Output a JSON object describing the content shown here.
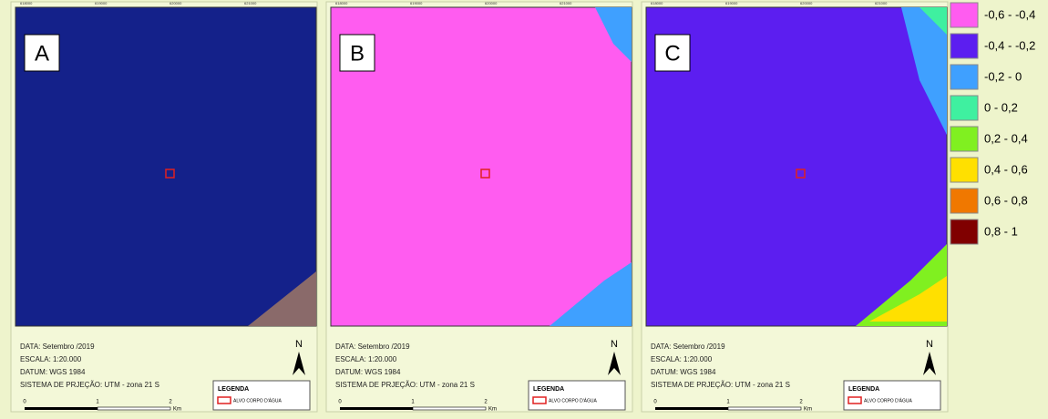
{
  "panels": [
    {
      "label": "A"
    },
    {
      "label": "B"
    },
    {
      "label": "C"
    }
  ],
  "map_info": {
    "date": "DATA: Setembro /2019",
    "scale": "ESCALA: 1:20.000",
    "datum": "DATUM: WGS 1984",
    "projection": "SISTEMA DE PRJEÇÃO: UTM - zona 21 S",
    "north": "N",
    "scale_bar": {
      "labels": [
        "0",
        "1",
        "2"
      ],
      "unit": "Km"
    },
    "coordinates": [
      "618000",
      "619000",
      "620000",
      "621000"
    ]
  },
  "inset_legend": {
    "title": "LEGENDA",
    "item": "ALVO CORPO D'ÁGUA"
  },
  "legend": {
    "classes": [
      {
        "label": "-0,6 - -0,4",
        "color": "#ff5cf0"
      },
      {
        "label": "-0,4 - -0,2",
        "color": "#5c1ef0"
      },
      {
        "label": "-0,2 - 0",
        "color": "#3fa0ff"
      },
      {
        "label": "0 - 0,2",
        "color": "#3ff0a0"
      },
      {
        "label": "0,2 - 0,4",
        "color": "#80f020"
      },
      {
        "label": "0,4 - 0,6",
        "color": "#ffe000"
      },
      {
        "label": "0,6 - 0,8",
        "color": "#f07800"
      },
      {
        "label": "0,8 - 1",
        "color": "#800000"
      }
    ]
  }
}
